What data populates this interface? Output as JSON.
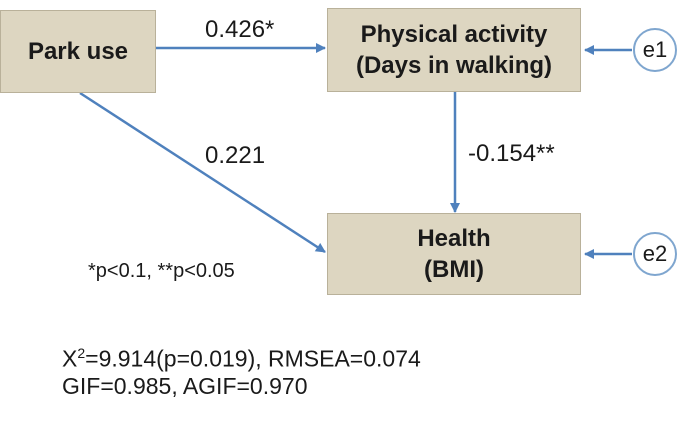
{
  "diagram": {
    "nodes": {
      "park_use": {
        "label": "Park use"
      },
      "physical_activity": {
        "line1": "Physical activity",
        "line2": "(Days in walking)"
      },
      "health": {
        "line1": "Health",
        "line2": "(BMI)"
      }
    },
    "errors": {
      "e1": "e1",
      "e2": "e2"
    },
    "paths": {
      "park_to_activity": "0.426*",
      "park_to_health": "0.221",
      "activity_to_health": "-0.154**"
    },
    "note": "*p<0.1, **p<0.05",
    "fit": {
      "chi_symbol": "X",
      "chi_exponent": "2",
      "line1_rest": "=9.914(p=0.019), RMSEA=0.074",
      "line2": "GIF=0.985, AGIF=0.970"
    },
    "colors": {
      "box_fill": "#ddd6c1",
      "arrow": "#4f81bd",
      "error_ring": "#7fa6cf"
    }
  }
}
